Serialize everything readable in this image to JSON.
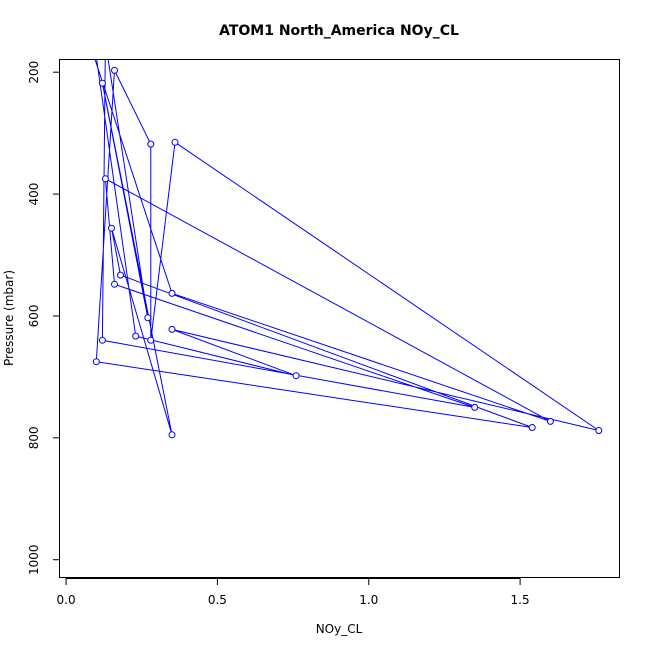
{
  "chart_data": {
    "type": "line",
    "title": "ATOM1 North_America NOy_CL",
    "xlabel": "NOy_CL",
    "ylabel": "Pressure (mbar)",
    "xlim": [
      -0.02,
      1.83
    ],
    "ylim": [
      1030,
      180
    ],
    "y_reversed": true,
    "x_ticks": [
      0.0,
      0.5,
      1.0,
      1.5
    ],
    "x_tick_labels": [
      "0.0",
      "0.5",
      "1.0",
      "1.5"
    ],
    "y_ticks": [
      200,
      400,
      600,
      800,
      1000
    ],
    "y_tick_labels": [
      "200",
      "400",
      "600",
      "800",
      "1000"
    ],
    "grid": false,
    "series": [
      {
        "color": "#0000ff",
        "points": [
          [
            0.07,
            140
          ],
          [
            0.35,
            563
          ],
          [
            1.6,
            773
          ],
          [
            0.13,
            375
          ],
          [
            0.16,
            548
          ],
          [
            1.35,
            750
          ],
          [
            0.12,
            640
          ],
          [
            0.13,
            150
          ],
          [
            0.27,
            603
          ],
          [
            0.12,
            218
          ],
          [
            0.35,
            795
          ],
          [
            0.15,
            456
          ],
          [
            0.18,
            533
          ],
          [
            1.54,
            783
          ],
          [
            0.1,
            675
          ],
          [
            0.16,
            197
          ],
          [
            0.28,
            318
          ],
          [
            0.28,
            640
          ],
          [
            0.36,
            315
          ],
          [
            1.76,
            788
          ],
          [
            0.35,
            622
          ],
          [
            0.76,
            698
          ],
          [
            0.23,
            633
          ],
          [
            0.09,
            140
          ]
        ]
      }
    ]
  }
}
